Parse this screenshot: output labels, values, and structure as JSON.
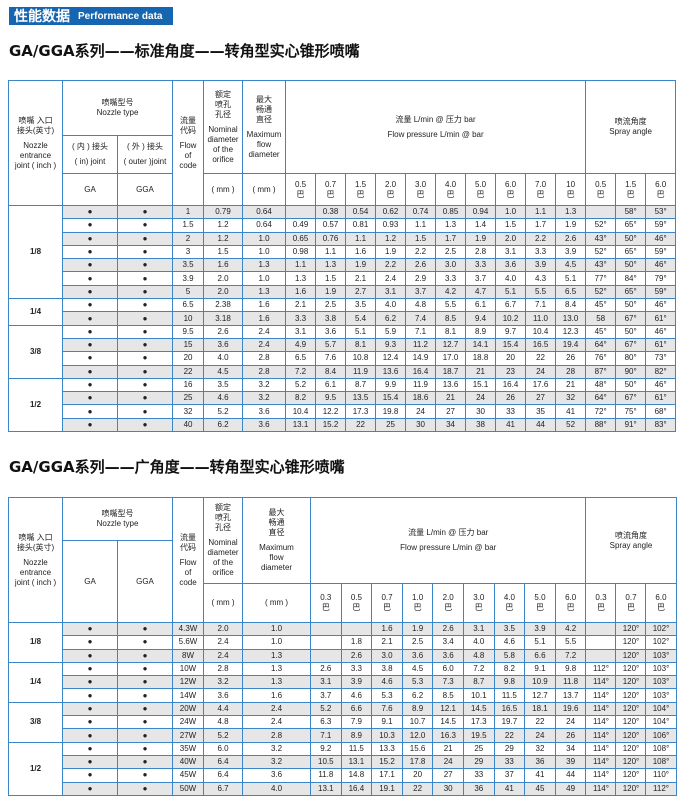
{
  "banner": {
    "cn": "性能数据",
    "en": "Performance data"
  },
  "colors": {
    "accent": "#1565b0",
    "grid": "#3a86c8",
    "shade": "#e6e6e6"
  },
  "tables": [
    {
      "title": "GA/GGA系列——标准角度——转角型实心锥形喷嘴",
      "header": {
        "joint": [
          "喷嘴 入口",
          "接头(英寸)",
          "Nozzle",
          "entrance",
          "joint ( inch )"
        ],
        "nozzle_type": [
          "喷嘴型号",
          "Nozzle type"
        ],
        "in_joint": [
          "( 内 ) 接头",
          "( in) joint"
        ],
        "outer_joint": [
          "( 外 ) 接头",
          "( outer )joint"
        ],
        "ga": "GA",
        "gga": "GGA",
        "code": [
          "流量",
          "代码",
          "Flow",
          "of",
          "code"
        ],
        "nominal": [
          "额定",
          "喷孔",
          "孔径",
          "Nominal",
          "diameter",
          "of the",
          "orifice"
        ],
        "max": [
          "最大",
          "畅通",
          "直径",
          "Maximum",
          "flow",
          "diameter"
        ],
        "mm": "( mm )",
        "flow": [
          "流量 L/min @ 压力 bar",
          "Flow pressure L/min @ bar"
        ],
        "angle": [
          "喷流角度",
          "Spray angle"
        ],
        "flow_pressures": [
          "0.5",
          "0.7",
          "1.5",
          "2.0",
          "3.0",
          "4.0",
          "5.0",
          "6.0",
          "7.0",
          "10"
        ],
        "angle_pressures": [
          "0.5",
          "1.5",
          "6.0"
        ],
        "bar_unit": "巴"
      },
      "groups": [
        {
          "joint": "1/8",
          "rows": [
            [
              "●",
              "●",
              "1",
              "0.79",
              "0.64",
              "",
              "0.38",
              "0.54",
              "0.62",
              "0.74",
              "0.85",
              "0.94",
              "1.0",
              "1.1",
              "1.3",
              "",
              "58°",
              "53°"
            ],
            [
              "●",
              "●",
              "1.5",
              "1.2",
              "0.64",
              "0.49",
              "0.57",
              "0.81",
              "0.93",
              "1.1",
              "1.3",
              "1.4",
              "1.5",
              "1.7",
              "1.9",
              "52°",
              "65°",
              "59°"
            ],
            [
              "●",
              "●",
              "2",
              "1.2",
              "1.0",
              "0.65",
              "0.76",
              "1.1",
              "1.2",
              "1.5",
              "1.7",
              "1.9",
              "2.0",
              "2.2",
              "2.6",
              "43°",
              "50°",
              "46°"
            ],
            [
              "●",
              "●",
              "3",
              "1.5",
              "1.0",
              "0.98",
              "1.1",
              "1.6",
              "1.9",
              "2.2",
              "2.5",
              "2.8",
              "3.1",
              "3.3",
              "3.9",
              "52°",
              "65°",
              "59°"
            ],
            [
              "●",
              "●",
              "3.5",
              "1.6",
              "1.3",
              "1.1",
              "1.3",
              "1.9",
              "2.2",
              "2.6",
              "3.0",
              "3.3",
              "3.6",
              "3.9",
              "4.5",
              "43°",
              "50°",
              "46°"
            ],
            [
              "●",
              "●",
              "3.9",
              "2.0",
              "1.0",
              "1.3",
              "1.5",
              "2.1",
              "2.4",
              "2.9",
              "3.3",
              "3.7",
              "4.0",
              "4.3",
              "5.1",
              "77°",
              "84°",
              "79°"
            ],
            [
              "●",
              "●",
              "5",
              "2.0",
              "1.3",
              "1.6",
              "1.9",
              "2.7",
              "3.1",
              "3.7",
              "4.2",
              "4.7",
              "5.1",
              "5.5",
              "6.5",
              "52°",
              "65°",
              "59°"
            ]
          ]
        },
        {
          "joint": "1/4",
          "rows": [
            [
              "●",
              "●",
              "6.5",
              "2.38",
              "1.6",
              "2.1",
              "2.5",
              "3.5",
              "4.0",
              "4.8",
              "5.5",
              "6.1",
              "6.7",
              "7.1",
              "8.4",
              "45°",
              "50°",
              "46°"
            ],
            [
              "●",
              "●",
              "10",
              "3.18",
              "1.6",
              "3.3",
              "3.8",
              "5.4",
              "6.2",
              "7.4",
              "8.5",
              "9.4",
              "10.2",
              "11.0",
              "13.0",
              "58",
              "67°",
              "61°"
            ]
          ]
        },
        {
          "joint": "3/8",
          "rows": [
            [
              "●",
              "●",
              "9.5",
              "2.6",
              "2.4",
              "3.1",
              "3.6",
              "5.1",
              "5.9",
              "7.1",
              "8.1",
              "8.9",
              "9.7",
              "10.4",
              "12.3",
              "45°",
              "50°",
              "46°"
            ],
            [
              "●",
              "●",
              "15",
              "3.6",
              "2.4",
              "4.9",
              "5.7",
              "8.1",
              "9.3",
              "11.2",
              "12.7",
              "14.1",
              "15.4",
              "16.5",
              "19.4",
              "64°",
              "67°",
              "61°"
            ],
            [
              "●",
              "●",
              "20",
              "4.0",
              "2.8",
              "6.5",
              "7.6",
              "10.8",
              "12.4",
              "14.9",
              "17.0",
              "18.8",
              "20",
              "22",
              "26",
              "76°",
              "80°",
              "73°"
            ],
            [
              "●",
              "●",
              "22",
              "4.5",
              "2.8",
              "7.2",
              "8.4",
              "11.9",
              "13.6",
              "16.4",
              "18.7",
              "21",
              "23",
              "24",
              "28",
              "87°",
              "90°",
              "82°"
            ]
          ]
        },
        {
          "joint": "1/2",
          "rows": [
            [
              "●",
              "●",
              "16",
              "3.5",
              "3.2",
              "5.2",
              "6.1",
              "8.7",
              "9.9",
              "11.9",
              "13.6",
              "15.1",
              "16.4",
              "17.6",
              "21",
              "48°",
              "50°",
              "46°"
            ],
            [
              "●",
              "●",
              "25",
              "4.6",
              "3.2",
              "8.2",
              "9.5",
              "13.5",
              "15.4",
              "18.6",
              "21",
              "24",
              "26",
              "27",
              "32",
              "64°",
              "67°",
              "61°"
            ],
            [
              "●",
              "●",
              "32",
              "5.2",
              "3.6",
              "10.4",
              "12.2",
              "17.3",
              "19.8",
              "24",
              "27",
              "30",
              "33",
              "35",
              "41",
              "72°",
              "75°",
              "68°"
            ],
            [
              "●",
              "●",
              "40",
              "6.2",
              "3.6",
              "13.1",
              "15.2",
              "22",
              "25",
              "30",
              "34",
              "38",
              "41",
              "44",
              "52",
              "88°",
              "91°",
              "83°"
            ]
          ]
        }
      ]
    },
    {
      "title": "GA/GGA系列——广角度——转角型实心锥形喷嘴",
      "header": {
        "joint": [
          "喷嘴 入口",
          "接头(英寸)",
          "Nozzle",
          "entrance",
          "joint ( inch )"
        ],
        "nozzle_type": [
          "喷嘴型号",
          "Nozzle type"
        ],
        "ga": "GA",
        "gga": "GGA",
        "code": [
          "流量",
          "代码",
          "Flow",
          "of",
          "code"
        ],
        "nominal": [
          "额定",
          "喷孔",
          "孔径",
          "Nominal",
          "diameter",
          "of the",
          "orifice"
        ],
        "max": [
          "最大",
          "畅通",
          "直径",
          "Maximum",
          "flow",
          "diameter"
        ],
        "mm": "( mm )",
        "flow": [
          "流量 L/min @ 压力 bar",
          "Flow pressure L/min @ bar"
        ],
        "angle": [
          "喷流角度",
          "Spray angle"
        ],
        "flow_pressures": [
          "0.3",
          "0.5",
          "0.7",
          "1.0",
          "2.0",
          "3.0",
          "4.0",
          "5.0",
          "6.0"
        ],
        "angle_pressures": [
          "0.3",
          "0.7",
          "6.0"
        ],
        "bar_unit": "巴"
      },
      "groups": [
        {
          "joint": "1/8",
          "rows": [
            [
              "●",
              "●",
              "4.3W",
              "2.0",
              "1.0",
              "",
              "",
              "1.6",
              "1.9",
              "2.6",
              "3.1",
              "3.5",
              "3.9",
              "4.2",
              "",
              "120°",
              "102°"
            ],
            [
              "●",
              "●",
              "5.6W",
              "2.4",
              "1.0",
              "",
              "1.8",
              "2.1",
              "2.5",
              "3.4",
              "4.0",
              "4.6",
              "5.1",
              "5.5",
              "",
              "120°",
              "102°"
            ],
            [
              "●",
              "●",
              "8W",
              "2.4",
              "1.3",
              "",
              "2.6",
              "3.0",
              "3.6",
              "3.6",
              "4.8",
              "5.8",
              "6.6",
              "7.2",
              "",
              "120°",
              "103°"
            ]
          ]
        },
        {
          "joint": "1/4",
          "rows": [
            [
              "●",
              "●",
              "10W",
              "2.8",
              "1.3",
              "2.6",
              "3.3",
              "3.8",
              "4.5",
              "6.0",
              "7.2",
              "8.2",
              "9.1",
              "9.8",
              "112°",
              "120°",
              "103°"
            ],
            [
              "●",
              "●",
              "12W",
              "3.2",
              "1.3",
              "3.1",
              "3.9",
              "4.6",
              "5.3",
              "7.3",
              "8.7",
              "9.8",
              "10.9",
              "11.8",
              "114°",
              "120°",
              "103°"
            ],
            [
              "●",
              "●",
              "14W",
              "3.6",
              "1.6",
              "3.7",
              "4.6",
              "5.3",
              "6.2",
              "8.5",
              "10.1",
              "11.5",
              "12.7",
              "13.7",
              "114°",
              "120°",
              "103°"
            ]
          ]
        },
        {
          "joint": "3/8",
          "rows": [
            [
              "●",
              "●",
              "20W",
              "4.4",
              "2.4",
              "5.2",
              "6.6",
              "7.6",
              "8.9",
              "12.1",
              "14.5",
              "16.5",
              "18.1",
              "19.6",
              "114°",
              "120°",
              "104°"
            ],
            [
              "●",
              "●",
              "24W",
              "4.8",
              "2.4",
              "6.3",
              "7.9",
              "9.1",
              "10.7",
              "14.5",
              "17.3",
              "19.7",
              "22",
              "24",
              "114°",
              "120°",
              "104°"
            ],
            [
              "●",
              "●",
              "27W",
              "5.2",
              "2.8",
              "7.1",
              "8.9",
              "10.3",
              "12.0",
              "16.3",
              "19.5",
              "22",
              "24",
              "26",
              "114°",
              "120°",
              "106°"
            ]
          ]
        },
        {
          "joint": "1/2",
          "rows": [
            [
              "●",
              "●",
              "35W",
              "6.0",
              "3.2",
              "9.2",
              "11.5",
              "13.3",
              "15.6",
              "21",
              "25",
              "29",
              "32",
              "34",
              "114°",
              "120°",
              "108°"
            ],
            [
              "●",
              "●",
              "40W",
              "6.4",
              "3.2",
              "10.5",
              "13.1",
              "15.2",
              "17.8",
              "24",
              "29",
              "33",
              "36",
              "39",
              "114°",
              "120°",
              "108°"
            ],
            [
              "●",
              "●",
              "45W",
              "6.4",
              "3.6",
              "11.8",
              "14.8",
              "17.1",
              "20",
              "27",
              "33",
              "37",
              "41",
              "44",
              "114°",
              "120°",
              "110°"
            ],
            [
              "●",
              "●",
              "50W",
              "6.7",
              "4.0",
              "13.1",
              "16.4",
              "19.1",
              "22",
              "30",
              "36",
              "41",
              "45",
              "49",
              "114°",
              "120°",
              "112°"
            ]
          ]
        }
      ]
    }
  ]
}
